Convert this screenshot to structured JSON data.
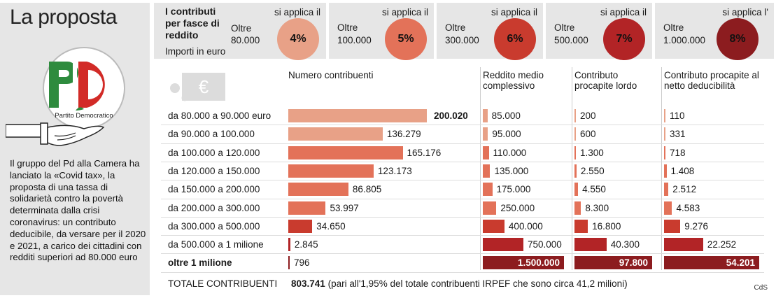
{
  "title": "La proposta",
  "description": "Il gruppo del Pd alla Camera ha lanciato la «Covid tax», la proposta di una tassa di solidarietà contro la povertà determinata dalla crisi coronavirus: un contributo deducibile, da versare per il 2020 e 2021, a carico dei cittadini con redditi superiori ad 80.000 euro",
  "logo": {
    "letters": "PD",
    "caption": "Partito Democratico"
  },
  "rates_intro": {
    "title": "I contributi per fasce di reddito",
    "note": "Importi in euro"
  },
  "rate_bands": [
    {
      "header": "si applica il",
      "label": "Oltre",
      "threshold": "80.000",
      "rate": "4%",
      "color": "#e8a187"
    },
    {
      "header": "si applica il",
      "label": "Oltre",
      "threshold": "100.000",
      "rate": "5%",
      "color": "#e37259"
    },
    {
      "header": "si applica il",
      "label": "Oltre",
      "threshold": "300.000",
      "rate": "6%",
      "color": "#c93b2e"
    },
    {
      "header": "si applica il",
      "label": "Oltre",
      "threshold": "500.000",
      "rate": "7%",
      "color": "#b22426"
    },
    {
      "header": "si applica l'",
      "label": "Oltre",
      "threshold": "1.000.000",
      "rate": "8%",
      "color": "#8c1c1f"
    }
  ],
  "columns": {
    "number": "Numero contribuenti",
    "income": "Reddito medio complessivo",
    "gross": "Contributo procapite lordo",
    "net": "Contributo procapite al netto deducibilità"
  },
  "chart_data": {
    "type": "table",
    "categories": [
      "da 80.000 a 90.000 euro",
      "da 90.000 a 100.000",
      "da 100.000 a 120.000",
      "da 120.000 a 150.000",
      "da 150.000 a 200.000",
      "da 200.000 a 300.000",
      "da 300.000 a 500.000",
      "da 500.000 a 1 milione",
      "oltre 1 milione"
    ],
    "series": [
      {
        "name": "Numero contribuenti",
        "values": [
          200020,
          136279,
          165176,
          123173,
          86805,
          53997,
          34650,
          2845,
          796
        ],
        "labels": [
          "200.020",
          "136.279",
          "165.176",
          "123.173",
          "86.805",
          "53.997",
          "34.650",
          "2.845",
          "796"
        ]
      },
      {
        "name": "Reddito medio complessivo",
        "values": [
          85000,
          95000,
          110000,
          135000,
          175000,
          250000,
          400000,
          750000,
          1500000
        ],
        "labels": [
          "85.000",
          "95.000",
          "110.000",
          "135.000",
          "175.000",
          "250.000",
          "400.000",
          "750.000",
          "1.500.000"
        ]
      },
      {
        "name": "Contributo procapite lordo",
        "values": [
          200,
          600,
          1300,
          2550,
          4550,
          8300,
          16800,
          40300,
          97800
        ],
        "labels": [
          "200",
          "600",
          "1.300",
          "2.550",
          "4.550",
          "8.300",
          "16.800",
          "40.300",
          "97.800"
        ]
      },
      {
        "name": "Contributo procapite al netto deducibilità",
        "values": [
          110,
          331,
          718,
          1408,
          2512,
          4583,
          9276,
          22252,
          54201
        ],
        "labels": [
          "110",
          "331",
          "718",
          "1.408",
          "2.512",
          "4.583",
          "9.276",
          "22.252",
          "54.201"
        ]
      }
    ],
    "row_colors": [
      "#e8a187",
      "#e8a187",
      "#e37259",
      "#e37259",
      "#e37259",
      "#e37259",
      "#c93b2e",
      "#b22426",
      "#8c1c1f"
    ]
  },
  "total": {
    "label": "TOTALE CONTRIBUENTI",
    "value": "803.741",
    "note": "(pari all'1,95% del totale contribuenti IRPEF che sono circa 41,2 milioni)"
  },
  "credit": "CdS"
}
